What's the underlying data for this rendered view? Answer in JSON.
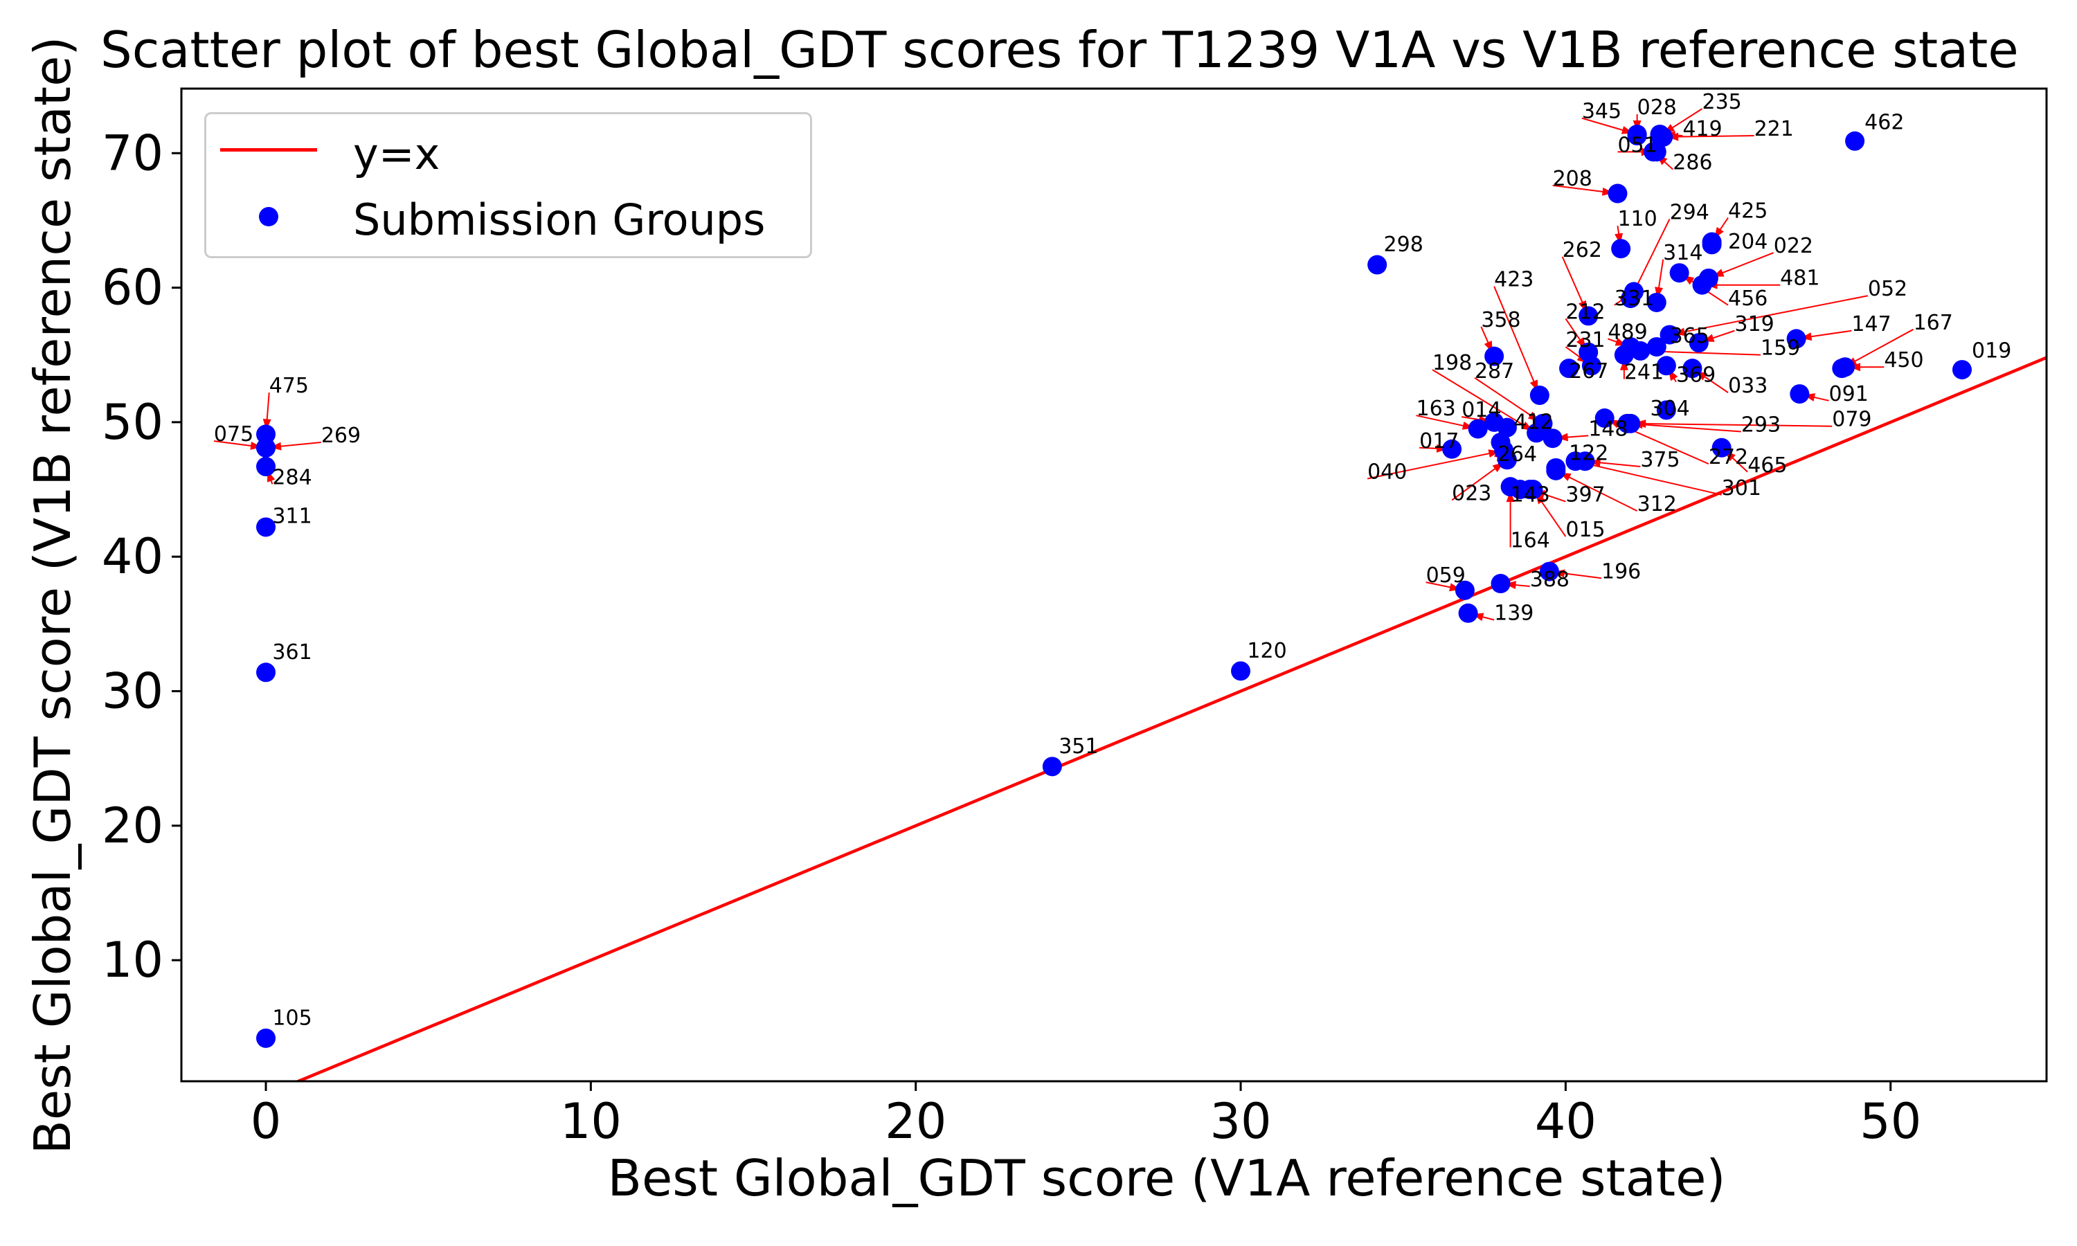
{
  "chart_data": {
    "type": "scatter",
    "title": "Scatter plot of best Global_GDT scores for T1239 V1A vs V1B reference state",
    "xlabel": "Best Global_GDT score (V1A reference state)",
    "ylabel": "Best Global_GDT score (V1B reference state)",
    "xlim": [
      -2.6,
      54.8
    ],
    "ylim": [
      1.0,
      74.8
    ],
    "xticks": [
      0,
      10,
      20,
      30,
      40,
      50
    ],
    "yticks": [
      10,
      20,
      30,
      40,
      50,
      60,
      70
    ],
    "grid": false,
    "legend_position": "top-left",
    "colors": {
      "points": "#0000ff",
      "line": "#ff0000",
      "arrows": "#ff0000"
    },
    "reference_line": {
      "name": "y=x",
      "slope": 1,
      "intercept": 0
    },
    "series": [
      {
        "name": "Submission Groups",
        "points": [
          {
            "label": "475",
            "x": 0.0,
            "y": 49.1,
            "lx": 0.1,
            "ly": 52.2
          },
          {
            "label": "075",
            "x": 0.0,
            "y": 48.1,
            "lx": -1.6,
            "ly": 48.6
          },
          {
            "label": "269",
            "x": 0.0,
            "y": 48.1,
            "lx": 1.7,
            "ly": 48.5
          },
          {
            "label": "284",
            "x": 0.0,
            "y": 46.7,
            "lx": 0.2,
            "ly": 45.4
          },
          {
            "label": "311",
            "x": 0.0,
            "y": 42.2,
            "lx": 0.2,
            "ly": 42.5
          },
          {
            "label": "361",
            "x": 0.0,
            "y": 31.4,
            "lx": 0.2,
            "ly": 32.4
          },
          {
            "label": "105",
            "x": 0.0,
            "y": 4.2,
            "lx": 0.2,
            "ly": 5.2
          },
          {
            "label": "351",
            "x": 24.2,
            "y": 24.4,
            "lx": 24.4,
            "ly": 25.4
          },
          {
            "label": "120",
            "x": 30.0,
            "y": 31.5,
            "lx": 30.2,
            "ly": 32.5
          },
          {
            "label": "298",
            "x": 34.2,
            "y": 61.7,
            "lx": 34.4,
            "ly": 62.7
          },
          {
            "label": "019",
            "x": 52.2,
            "y": 53.9,
            "lx": 52.5,
            "ly": 54.8
          },
          {
            "label": "462",
            "x": 48.9,
            "y": 70.9,
            "lx": 49.2,
            "ly": 71.8
          },
          {
            "label": "059",
            "x": 36.9,
            "y": 37.5,
            "lx": 35.7,
            "ly": 38.1
          },
          {
            "label": "139",
            "x": 37.0,
            "y": 35.8,
            "lx": 37.8,
            "ly": 35.3
          },
          {
            "label": "388",
            "x": 38.0,
            "y": 38.0,
            "lx": 38.9,
            "ly": 37.8
          },
          {
            "label": "196",
            "x": 39.5,
            "y": 38.9,
            "lx": 41.1,
            "ly": 38.4
          },
          {
            "label": "164",
            "x": 38.3,
            "y": 45.2,
            "lx": 38.3,
            "ly": 40.7
          },
          {
            "label": "015",
            "x": 39.0,
            "y": 45.0,
            "lx": 40.0,
            "ly": 41.5
          },
          {
            "label": "023",
            "x": 38.2,
            "y": 47.2,
            "lx": 36.5,
            "ly": 44.2
          },
          {
            "label": "143",
            "x": 38.6,
            "y": 45.0,
            "lx": 38.3,
            "ly": 44.1
          },
          {
            "label": "397",
            "x": 38.9,
            "y": 45.0,
            "lx": 40.0,
            "ly": 44.1
          },
          {
            "label": "312",
            "x": 39.7,
            "y": 46.4,
            "lx": 42.2,
            "ly": 43.4
          },
          {
            "label": "301",
            "x": 40.3,
            "y": 47.1,
            "lx": 44.8,
            "ly": 44.6
          },
          {
            "label": "375",
            "x": 40.6,
            "y": 47.1,
            "lx": 42.3,
            "ly": 46.7
          },
          {
            "label": "040",
            "x": 38.1,
            "y": 47.9,
            "lx": 33.9,
            "ly": 45.8
          },
          {
            "label": "017",
            "x": 36.5,
            "y": 48.0,
            "lx": 35.5,
            "ly": 48.1
          },
          {
            "label": "264",
            "x": 38.0,
            "y": 48.5,
            "lx": 37.9,
            "ly": 47.1
          },
          {
            "label": "122",
            "x": 39.7,
            "y": 46.6,
            "lx": 40.1,
            "ly": 47.2
          },
          {
            "label": "163",
            "x": 37.3,
            "y": 49.5,
            "lx": 35.4,
            "ly": 50.5
          },
          {
            "label": "014",
            "x": 37.8,
            "y": 50.0,
            "lx": 36.8,
            "ly": 50.4
          },
          {
            "label": "412",
            "x": 38.2,
            "y": 49.6,
            "lx": 38.4,
            "ly": 49.5
          },
          {
            "label": "148",
            "x": 39.6,
            "y": 48.8,
            "lx": 40.7,
            "ly": 49.0
          },
          {
            "label": "272",
            "x": 41.2,
            "y": 50.3,
            "lx": 44.4,
            "ly": 46.9
          },
          {
            "label": "465",
            "x": 44.8,
            "y": 48.1,
            "lx": 45.6,
            "ly": 46.3
          },
          {
            "label": "293",
            "x": 41.9,
            "y": 49.9,
            "lx": 45.4,
            "ly": 49.3
          },
          {
            "label": "079",
            "x": 42.0,
            "y": 49.9,
            "lx": 48.2,
            "ly": 49.7
          },
          {
            "label": "304",
            "x": 43.1,
            "y": 50.9,
            "lx": 42.6,
            "ly": 50.5
          },
          {
            "label": "198",
            "x": 39.1,
            "y": 49.2,
            "lx": 35.9,
            "ly": 53.9
          },
          {
            "label": "287",
            "x": 39.3,
            "y": 49.9,
            "lx": 37.2,
            "ly": 53.3
          },
          {
            "label": "267",
            "x": 40.1,
            "y": 54.0,
            "lx": 40.1,
            "ly": 53.3
          },
          {
            "label": "358",
            "x": 37.8,
            "y": 54.9,
            "lx": 37.4,
            "ly": 57.1
          },
          {
            "label": "423",
            "x": 39.2,
            "y": 52.0,
            "lx": 37.8,
            "ly": 60.1
          },
          {
            "label": "231",
            "x": 40.8,
            "y": 54.2,
            "lx": 40.0,
            "ly": 55.6
          },
          {
            "label": "241",
            "x": 41.8,
            "y": 55.0,
            "lx": 41.8,
            "ly": 53.2
          },
          {
            "label": "212",
            "x": 40.7,
            "y": 55.2,
            "lx": 40.0,
            "ly": 57.7
          },
          {
            "label": "489",
            "x": 42.0,
            "y": 55.6,
            "lx": 41.3,
            "ly": 56.2
          },
          {
            "label": "262",
            "x": 40.7,
            "y": 57.9,
            "lx": 39.9,
            "ly": 62.3
          },
          {
            "label": "331",
            "x": 42.1,
            "y": 59.7,
            "lx": 41.5,
            "ly": 58.7
          },
          {
            "label": "369",
            "x": 43.1,
            "y": 54.2,
            "lx": 43.4,
            "ly": 53.0
          },
          {
            "label": "033",
            "x": 43.9,
            "y": 54.0,
            "lx": 45.0,
            "ly": 52.2
          },
          {
            "label": "159",
            "x": 42.3,
            "y": 55.3,
            "lx": 46.0,
            "ly": 55.0
          },
          {
            "label": "365",
            "x": 42.8,
            "y": 55.6,
            "lx": 43.2,
            "ly": 55.9
          },
          {
            "label": "319",
            "x": 44.1,
            "y": 55.9,
            "lx": 45.2,
            "ly": 56.8
          },
          {
            "label": "052",
            "x": 43.2,
            "y": 56.5,
            "lx": 49.3,
            "ly": 59.4
          },
          {
            "label": "147",
            "x": 47.1,
            "y": 56.2,
            "lx": 48.8,
            "ly": 56.8
          },
          {
            "label": "481",
            "x": 44.2,
            "y": 60.2,
            "lx": 46.6,
            "ly": 60.2
          },
          {
            "label": "456",
            "x": 43.5,
            "y": 61.1,
            "lx": 45.0,
            "ly": 58.7
          },
          {
            "label": "314",
            "x": 42.8,
            "y": 58.9,
            "lx": 43.0,
            "ly": 62.1
          },
          {
            "label": "022",
            "x": 44.4,
            "y": 60.7,
            "lx": 46.4,
            "ly": 62.6
          },
          {
            "label": "204",
            "x": 44.5,
            "y": 63.2,
            "lx": 45.0,
            "ly": 62.9
          },
          {
            "label": "425",
            "x": 44.5,
            "y": 63.4,
            "lx": 45.0,
            "ly": 65.2
          },
          {
            "label": "294",
            "x": 42.0,
            "y": 59.2,
            "lx": 43.2,
            "ly": 65.1
          },
          {
            "label": "110",
            "x": 41.7,
            "y": 62.9,
            "lx": 41.6,
            "ly": 64.6
          },
          {
            "label": "208",
            "x": 41.6,
            "y": 67.0,
            "lx": 39.6,
            "ly": 67.6
          },
          {
            "label": "167",
            "x": 48.5,
            "y": 54.0,
            "lx": 50.7,
            "ly": 56.9
          },
          {
            "label": "450",
            "x": 48.6,
            "y": 54.1,
            "lx": 49.8,
            "ly": 54.1
          },
          {
            "label": "091",
            "x": 47.2,
            "y": 52.1,
            "lx": 48.1,
            "ly": 51.6
          },
          {
            "label": "345",
            "x": 42.2,
            "y": 71.4,
            "lx": 40.5,
            "ly": 72.6
          },
          {
            "label": "028",
            "x": 42.2,
            "y": 71.3,
            "lx": 42.2,
            "ly": 72.9
          },
          {
            "label": "235",
            "x": 42.9,
            "y": 71.3,
            "lx": 44.2,
            "ly": 73.3
          },
          {
            "label": "051",
            "x": 42.8,
            "y": 70.1,
            "lx": 41.6,
            "ly": 70.1
          },
          {
            "label": "419",
            "x": 42.9,
            "y": 71.4,
            "lx": 43.6,
            "ly": 71.3
          },
          {
            "label": "221",
            "x": 43.0,
            "y": 71.2,
            "lx": 45.8,
            "ly": 71.3
          },
          {
            "label": "286",
            "x": 42.7,
            "y": 70.1,
            "lx": 43.3,
            "ly": 68.8
          }
        ]
      }
    ]
  },
  "legend": {
    "line_label": "y=x",
    "points_label": "Submission Groups"
  }
}
